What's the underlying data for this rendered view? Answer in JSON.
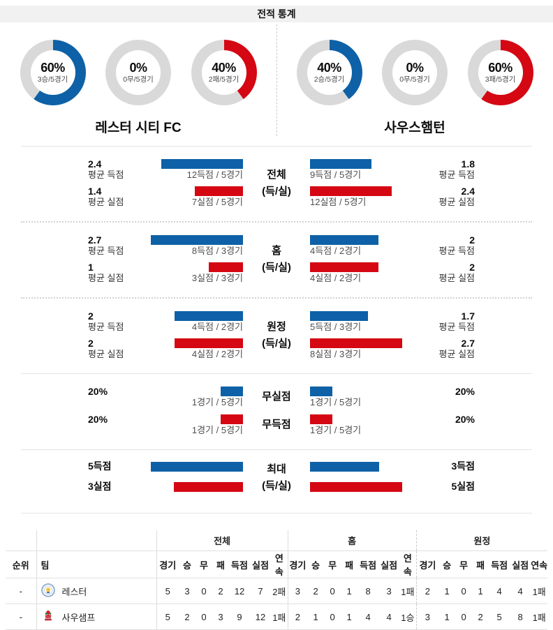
{
  "page": {
    "title": "전적 통계"
  },
  "colors": {
    "blue": "#0e61a6",
    "red": "#d40713",
    "donut_gray": "#d9d9d9",
    "title_bg": "#f1f1f1"
  },
  "teams": {
    "home": {
      "name": "레스터 시티 FC",
      "short": "레스터"
    },
    "away": {
      "name": "사우스햄턴",
      "short": "사우샘프"
    }
  },
  "donuts": {
    "home": [
      {
        "pct": "60%",
        "sub": "3승/5경기",
        "value": 60,
        "color": "#0e61a6"
      },
      {
        "pct": "0%",
        "sub": "0무/5경기",
        "value": 0,
        "color": "#0e61a6"
      },
      {
        "pct": "40%",
        "sub": "2패/5경기",
        "value": 40,
        "color": "#d40713"
      }
    ],
    "away": [
      {
        "pct": "40%",
        "sub": "2승/5경기",
        "value": 40,
        "color": "#0e61a6"
      },
      {
        "pct": "0%",
        "sub": "0무/5경기",
        "value": 0,
        "color": "#0e61a6"
      },
      {
        "pct": "60%",
        "sub": "3패/5경기",
        "value": 60,
        "color": "#d40713"
      }
    ]
  },
  "sections": [
    {
      "id": "total",
      "center_top": "전체",
      "center_bottom": "(득/실)",
      "rows": [
        {
          "tone": "blue",
          "left": {
            "value": "2.4",
            "label": "평균 득점",
            "bar_pct": 89,
            "sub": "12득점 / 5경기"
          },
          "right": {
            "value": "1.8",
            "label": "평균 득점",
            "bar_pct": 67,
            "sub": "9득점 / 5경기"
          }
        },
        {
          "tone": "red",
          "left": {
            "value": "1.4",
            "label": "평균 실점",
            "bar_pct": 52,
            "sub": "7실점 / 5경기"
          },
          "right": {
            "value": "2.4",
            "label": "평균 실점",
            "bar_pct": 89,
            "sub": "12실점 / 5경기"
          }
        }
      ]
    },
    {
      "id": "home",
      "center_top": "홈",
      "center_bottom": "(득/실)",
      "rows": [
        {
          "tone": "blue",
          "left": {
            "value": "2.7",
            "label": "평균 득점",
            "bar_pct": 100,
            "sub": "8득점 / 3경기"
          },
          "right": {
            "value": "2",
            "label": "평균 득점",
            "bar_pct": 74,
            "sub": "4득점 / 2경기"
          }
        },
        {
          "tone": "red",
          "left": {
            "value": "1",
            "label": "평균 실점",
            "bar_pct": 37,
            "sub": "3실점 / 3경기"
          },
          "right": {
            "value": "2",
            "label": "평균 실점",
            "bar_pct": 74,
            "sub": "4실점 / 2경기"
          }
        }
      ]
    },
    {
      "id": "away",
      "center_top": "원정",
      "center_bottom": "(득/실)",
      "rows": [
        {
          "tone": "blue",
          "left": {
            "value": "2",
            "label": "평균 득점",
            "bar_pct": 74,
            "sub": "4득점 / 2경기"
          },
          "right": {
            "value": "1.7",
            "label": "평균 득점",
            "bar_pct": 63,
            "sub": "5득점 / 3경기"
          }
        },
        {
          "tone": "red",
          "left": {
            "value": "2",
            "label": "평균 실점",
            "bar_pct": 74,
            "sub": "4실점 / 2경기"
          },
          "right": {
            "value": "2.7",
            "label": "평균 실점",
            "bar_pct": 100,
            "sub": "8실점 / 3경기"
          }
        }
      ]
    },
    {
      "id": "shutout",
      "rows": [
        {
          "tone": "blue",
          "center": "무실점",
          "left": {
            "value": "20%",
            "bar_pct": 24,
            "sub": "1경기 / 5경기"
          },
          "right": {
            "value": "20%",
            "bar_pct": 24,
            "sub": "1경기 / 5경기"
          }
        },
        {
          "tone": "red",
          "center": "무득점",
          "left": {
            "value": "20%",
            "bar_pct": 24,
            "sub": "1경기 / 5경기"
          },
          "right": {
            "value": "20%",
            "bar_pct": 24,
            "sub": "1경기 / 5경기"
          }
        }
      ]
    },
    {
      "id": "max",
      "center_top": "최대",
      "center_bottom": "(득/실)",
      "rows": [
        {
          "tone": "blue",
          "left": {
            "label": "5득점",
            "bar_pct": 100
          },
          "right": {
            "label": "3득점",
            "bar_pct": 75
          }
        },
        {
          "tone": "red",
          "left": {
            "label": "3실점",
            "bar_pct": 75
          },
          "right": {
            "label": "5실점",
            "bar_pct": 100
          }
        }
      ]
    }
  ],
  "table": {
    "rank_header": "순위",
    "team_header": "팀",
    "group_headers": [
      "전체",
      "홈",
      "원정"
    ],
    "stat_cols": [
      "경기",
      "승",
      "무",
      "패",
      "득점",
      "실점",
      "연속"
    ],
    "rows": [
      {
        "rank": "-",
        "team": "레스터",
        "all": [
          "5",
          "3",
          "0",
          "2",
          "12",
          "7",
          "2패"
        ],
        "home": [
          "3",
          "2",
          "0",
          "1",
          "8",
          "3",
          "1패"
        ],
        "away": [
          "2",
          "1",
          "0",
          "1",
          "4",
          "4",
          "1패"
        ]
      },
      {
        "rank": "-",
        "team": "사우샘프",
        "all": [
          "5",
          "2",
          "0",
          "3",
          "9",
          "12",
          "1패"
        ],
        "home": [
          "2",
          "1",
          "0",
          "1",
          "4",
          "4",
          "1승"
        ],
        "away": [
          "3",
          "1",
          "0",
          "2",
          "5",
          "8",
          "1패"
        ]
      }
    ]
  },
  "chart_data": [
    {
      "type": "pie",
      "title": "레스터 시티 FC 승/무/패",
      "categories": [
        "승",
        "무",
        "패"
      ],
      "values": [
        60,
        0,
        40
      ]
    },
    {
      "type": "pie",
      "title": "사우스햄턴 승/무/패",
      "categories": [
        "승",
        "무",
        "패"
      ],
      "values": [
        40,
        0,
        60
      ]
    },
    {
      "type": "bar",
      "title": "평균 득실 비교 (레스터 vs 사우스햄턴)",
      "categories": [
        "전체 득점",
        "전체 실점",
        "홈 득점",
        "홈 실점",
        "원정 득점",
        "원정 실점",
        "무실점%",
        "무득점%",
        "최대 득점",
        "최대 실점"
      ],
      "series": [
        {
          "name": "레스터 시티 FC",
          "values": [
            2.4,
            1.4,
            2.7,
            1,
            2,
            2,
            20,
            20,
            5,
            3
          ]
        },
        {
          "name": "사우스햄턴",
          "values": [
            1.8,
            2.4,
            2,
            2,
            1.7,
            2.7,
            20,
            20,
            3,
            5
          ]
        }
      ]
    }
  ]
}
